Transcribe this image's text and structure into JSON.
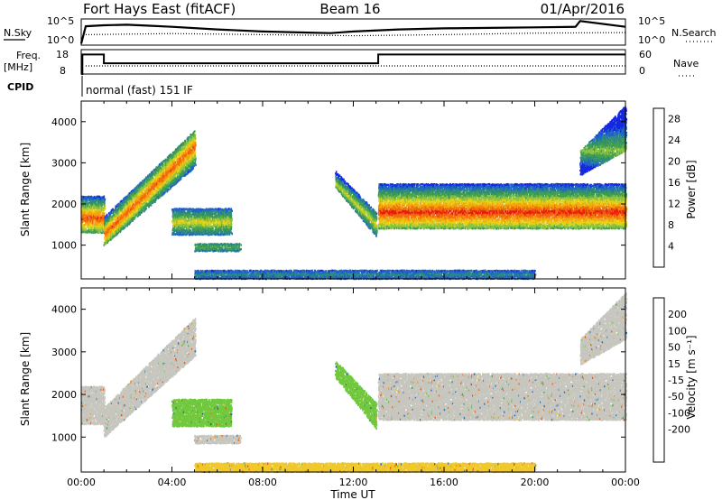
{
  "header": {
    "station": "Fort Hays East (fitACF)",
    "beam": "Beam 16",
    "date": "01/Apr/2016"
  },
  "top_panels": {
    "nsky_label": "N.Sky",
    "nsky_ticks": [
      "10^5",
      "10^0"
    ],
    "nsearch_label": "N.Search",
    "nsearch_ticks": [
      "10^5",
      "10^0"
    ],
    "freq_label": "Freq.",
    "freq_unit": "[MHz]",
    "freq_ticks": [
      "18",
      "8"
    ],
    "nave_label": "Nave",
    "nave_ticks": [
      "60",
      "0"
    ],
    "cpid_label": "CPID",
    "cpid_text": "normal (fast) 151 IF"
  },
  "colors": {
    "power": [
      "#1428e0",
      "#1e64c8",
      "#2e8a7a",
      "#3f9e52",
      "#8cc43c",
      "#e8d016",
      "#f4a40c",
      "#f06a0c",
      "#e81c0c"
    ],
    "velocity": [
      "#e81c0c",
      "#f05a0c",
      "#f4960c",
      "#f0c828",
      "#c8c8c0",
      "#c8c8c0",
      "#70c83c",
      "#3f9e52",
      "#2b6eb4",
      "#1430b4"
    ],
    "velocity_scatter": "#c6c6be",
    "frame": "#000000"
  },
  "chart_data": [
    {
      "type": "line",
      "title": "N.Sky / N.Search",
      "x_unit": "UT hours",
      "x_range": [
        0,
        24
      ],
      "ylim_log10": [
        0,
        5
      ],
      "series": [
        {
          "name": "N.Sky",
          "x": [
            0,
            0.2,
            1,
            2,
            3,
            4,
            6,
            8,
            10,
            11,
            12,
            14,
            16,
            18,
            20,
            21.8,
            22,
            24
          ],
          "y_log10": [
            0.3,
            3.6,
            3.8,
            3.9,
            3.7,
            3.5,
            3.0,
            2.6,
            2.4,
            2.3,
            2.6,
            3.0,
            3.2,
            3.3,
            3.4,
            3.5,
            4.6,
            3.5
          ]
        },
        {
          "name": "N.Search",
          "x": [
            0.2,
            4,
            8,
            12,
            16,
            20,
            24
          ],
          "y_log10": [
            2.0,
            2.2,
            2.0,
            1.8,
            2.0,
            2.3,
            2.4
          ]
        }
      ]
    },
    {
      "type": "line",
      "title": "Freq. / Nave",
      "x_unit": "UT hours",
      "x_range": [
        0,
        24
      ],
      "freq_ylim": [
        8,
        18
      ],
      "nave_ylim": [
        0,
        60
      ],
      "series": [
        {
          "name": "Freq.",
          "x": [
            0,
            0.05,
            0.05,
            1.0,
            1.0,
            13.1,
            13.1,
            24
          ],
          "y": [
            8,
            8,
            16,
            16,
            12.4,
            12.4,
            16,
            16
          ]
        },
        {
          "name": "Nave",
          "x": [
            0.2,
            24
          ],
          "y": [
            20,
            20
          ]
        }
      ]
    },
    {
      "type": "heatmap",
      "title": "Power",
      "xlabel": "Time UT",
      "ylabel": "Slant Range [km]",
      "x_ticks": [
        "00:00",
        "04:00",
        "08:00",
        "12:00",
        "16:00",
        "20:00",
        "00:00"
      ],
      "y_ticks": [
        1000,
        2000,
        3000,
        4000
      ],
      "xlim_hours": [
        0,
        24
      ],
      "ylim_km": [
        180,
        4500
      ],
      "colorbar_label": "Power [dB]",
      "colorbar_ticks": [
        4,
        8,
        12,
        16,
        20,
        24,
        28
      ],
      "colorbar_range": [
        0,
        30
      ],
      "bands": [
        {
          "t0": 0.0,
          "t1": 1.0,
          "r_low": [
            1300,
            1300
          ],
          "r_high": [
            2200,
            2200
          ],
          "core": 1650,
          "pmax": 27
        },
        {
          "t0": 1.0,
          "t1": 5.0,
          "r_low": [
            1000,
            2900
          ],
          "r_high": [
            1700,
            3800
          ],
          "core_start": 1250,
          "core_end": 3400,
          "pmax": 26
        },
        {
          "t0": 4.0,
          "t1": 6.6,
          "r_low": [
            1250,
            1250
          ],
          "r_high": [
            1900,
            1900
          ],
          "core": 1550,
          "pmax": 18
        },
        {
          "t0": 5.0,
          "t1": 7.0,
          "r_low": [
            850,
            850
          ],
          "r_high": [
            1050,
            1050
          ],
          "core": 950,
          "pmax": 13
        },
        {
          "t0": 11.2,
          "t1": 13.0,
          "r_low": [
            2400,
            1200
          ],
          "r_high": [
            2800,
            1800
          ],
          "core_start": 2500,
          "core_end": 1500,
          "pmax": 18
        },
        {
          "t0": 13.1,
          "t1": 24.0,
          "r_low": [
            1400,
            1400
          ],
          "r_high": [
            2500,
            2500
          ],
          "core": 1800,
          "pmax": 28
        },
        {
          "t0": 22.0,
          "t1": 24.0,
          "r_low": [
            2700,
            3300
          ],
          "r_high": [
            3300,
            4400
          ],
          "core": 3300,
          "pmax": 15
        },
        {
          "t0": 5.0,
          "t1": 20.0,
          "r_low": [
            180,
            180
          ],
          "r_high": [
            400,
            400
          ],
          "core": 280,
          "pmax": 8
        }
      ]
    },
    {
      "type": "heatmap",
      "title": "Velocity",
      "xlabel": "Time UT",
      "ylabel": "Slant Range [km]",
      "x_ticks": [
        "00:00",
        "04:00",
        "08:00",
        "12:00",
        "16:00",
        "20:00",
        "00:00"
      ],
      "y_ticks": [
        1000,
        2000,
        3000,
        4000
      ],
      "xlim_hours": [
        0,
        24
      ],
      "ylim_km": [
        180,
        4500
      ],
      "colorbar_label": "Velocity [m s⁻¹]",
      "colorbar_ticks": [
        200,
        100,
        50,
        15,
        -15,
        -50,
        -100,
        -200
      ],
      "colorbar_range": [
        -250,
        250
      ],
      "bands": [
        {
          "t0": 0.0,
          "t1": 1.0,
          "r_low": [
            1300,
            1300
          ],
          "r_high": [
            2200,
            2200
          ],
          "v": 0
        },
        {
          "t0": 1.0,
          "t1": 5.0,
          "r_low": [
            1000,
            2900
          ],
          "r_high": [
            1700,
            3800
          ],
          "v": 0
        },
        {
          "t0": 4.0,
          "t1": 6.6,
          "r_low": [
            1250,
            1250
          ],
          "r_high": [
            1900,
            1900
          ],
          "v": 30
        },
        {
          "t0": 5.0,
          "t1": 7.0,
          "r_low": [
            850,
            850
          ],
          "r_high": [
            1050,
            1050
          ],
          "v": 0
        },
        {
          "t0": 11.2,
          "t1": 13.0,
          "r_low": [
            2400,
            1200
          ],
          "r_high": [
            2800,
            1800
          ],
          "v": 40
        },
        {
          "t0": 13.1,
          "t1": 24.0,
          "r_low": [
            1400,
            1400
          ],
          "r_high": [
            2500,
            2500
          ],
          "v": 0
        },
        {
          "t0": 22.0,
          "t1": 24.0,
          "r_low": [
            2700,
            3300
          ],
          "r_high": [
            3300,
            4400
          ],
          "v": 0
        },
        {
          "t0": 5.0,
          "t1": 20.0,
          "r_low": [
            180,
            180
          ],
          "r_high": [
            400,
            400
          ],
          "v": -40
        }
      ]
    }
  ]
}
